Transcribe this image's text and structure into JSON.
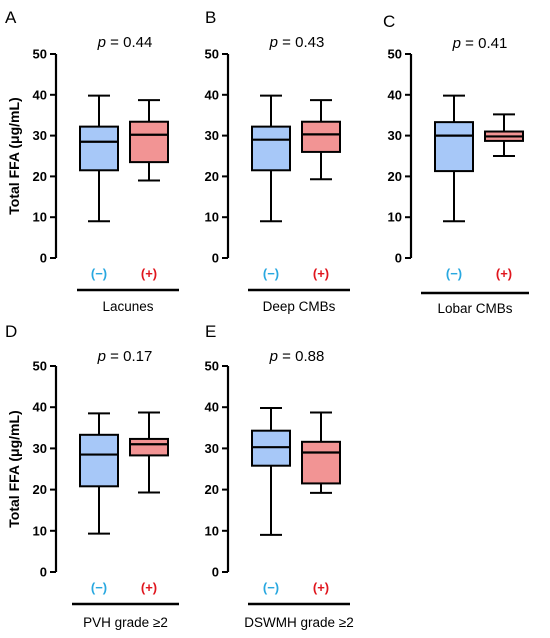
{
  "colors": {
    "neg_fill": "#a7c8f8",
    "pos_fill": "#f29494",
    "neg_label": "#29a8e0",
    "pos_label": "#e0161e"
  },
  "chart_data": [
    {
      "type": "box",
      "panel": "A",
      "p_label": "p",
      "p_text": " = 0.44",
      "xlabel": "Lacunes",
      "ylabel": "Total FFA (μg/mL)",
      "ylim": [
        0,
        50
      ],
      "yticks": [
        "0",
        "10",
        "20",
        "30",
        "40",
        "50"
      ],
      "categories": [
        "(−)",
        "(+)"
      ],
      "boxes": [
        {
          "min": 9,
          "q1": 21.5,
          "median": 28.5,
          "q3": 32.2,
          "max": 39.8
        },
        {
          "min": 19,
          "q1": 23.5,
          "median": 30.2,
          "q3": 33.4,
          "max": 38.7
        }
      ]
    },
    {
      "type": "box",
      "panel": "B",
      "p_label": "p",
      "p_text": " = 0.43",
      "xlabel": "Deep CMBs",
      "ylabel": "",
      "ylim": [
        0,
        50
      ],
      "yticks": [
        "0",
        "10",
        "20",
        "30",
        "40",
        "50"
      ],
      "categories": [
        "(−)",
        "(+)"
      ],
      "boxes": [
        {
          "min": 9,
          "q1": 21.5,
          "median": 29,
          "q3": 32.2,
          "max": 39.8
        },
        {
          "min": 19.3,
          "q1": 26,
          "median": 30.3,
          "q3": 33.4,
          "max": 38.7
        }
      ]
    },
    {
      "type": "box",
      "panel": "C",
      "p_label": "p",
      "p_text": " = 0.41",
      "xlabel": "Lobar CMBs",
      "ylabel": "",
      "ylim": [
        0,
        50
      ],
      "yticks": [
        "0",
        "10",
        "20",
        "30",
        "40",
        "50"
      ],
      "categories": [
        "(−)",
        "(+)"
      ],
      "boxes": [
        {
          "min": 9,
          "q1": 21.3,
          "median": 30,
          "q3": 33.3,
          "max": 39.8
        },
        {
          "min": 25,
          "q1": 28.7,
          "median": 29.8,
          "q3": 31,
          "max": 35.2
        }
      ]
    },
    {
      "type": "box",
      "panel": "D",
      "p_label": "p",
      "p_text": " = 0.17",
      "xlabel": "PVH grade ≥2",
      "ylabel": "Total FFA (μg/mL)",
      "ylim": [
        0,
        50
      ],
      "yticks": [
        "0",
        "10",
        "20",
        "30",
        "40",
        "50"
      ],
      "categories": [
        "(−)",
        "(+)"
      ],
      "boxes": [
        {
          "min": 9.3,
          "q1": 20.8,
          "median": 28.5,
          "q3": 33.3,
          "max": 38.5
        },
        {
          "min": 19.3,
          "q1": 28.3,
          "median": 31,
          "q3": 32.3,
          "max": 38.7
        }
      ]
    },
    {
      "type": "box",
      "panel": "E",
      "p_label": "p",
      "p_text": " = 0.88",
      "xlabel": "DSWMH grade ≥2",
      "ylabel": "",
      "ylim": [
        0,
        50
      ],
      "yticks": [
        "0",
        "10",
        "20",
        "30",
        "40",
        "50"
      ],
      "categories": [
        "(−)",
        "(+)"
      ],
      "boxes": [
        {
          "min": 9,
          "q1": 25.8,
          "median": 30.3,
          "q3": 34.3,
          "max": 39.8
        },
        {
          "min": 19.2,
          "q1": 21.5,
          "median": 29,
          "q3": 31.6,
          "max": 38.7
        }
      ]
    }
  ]
}
